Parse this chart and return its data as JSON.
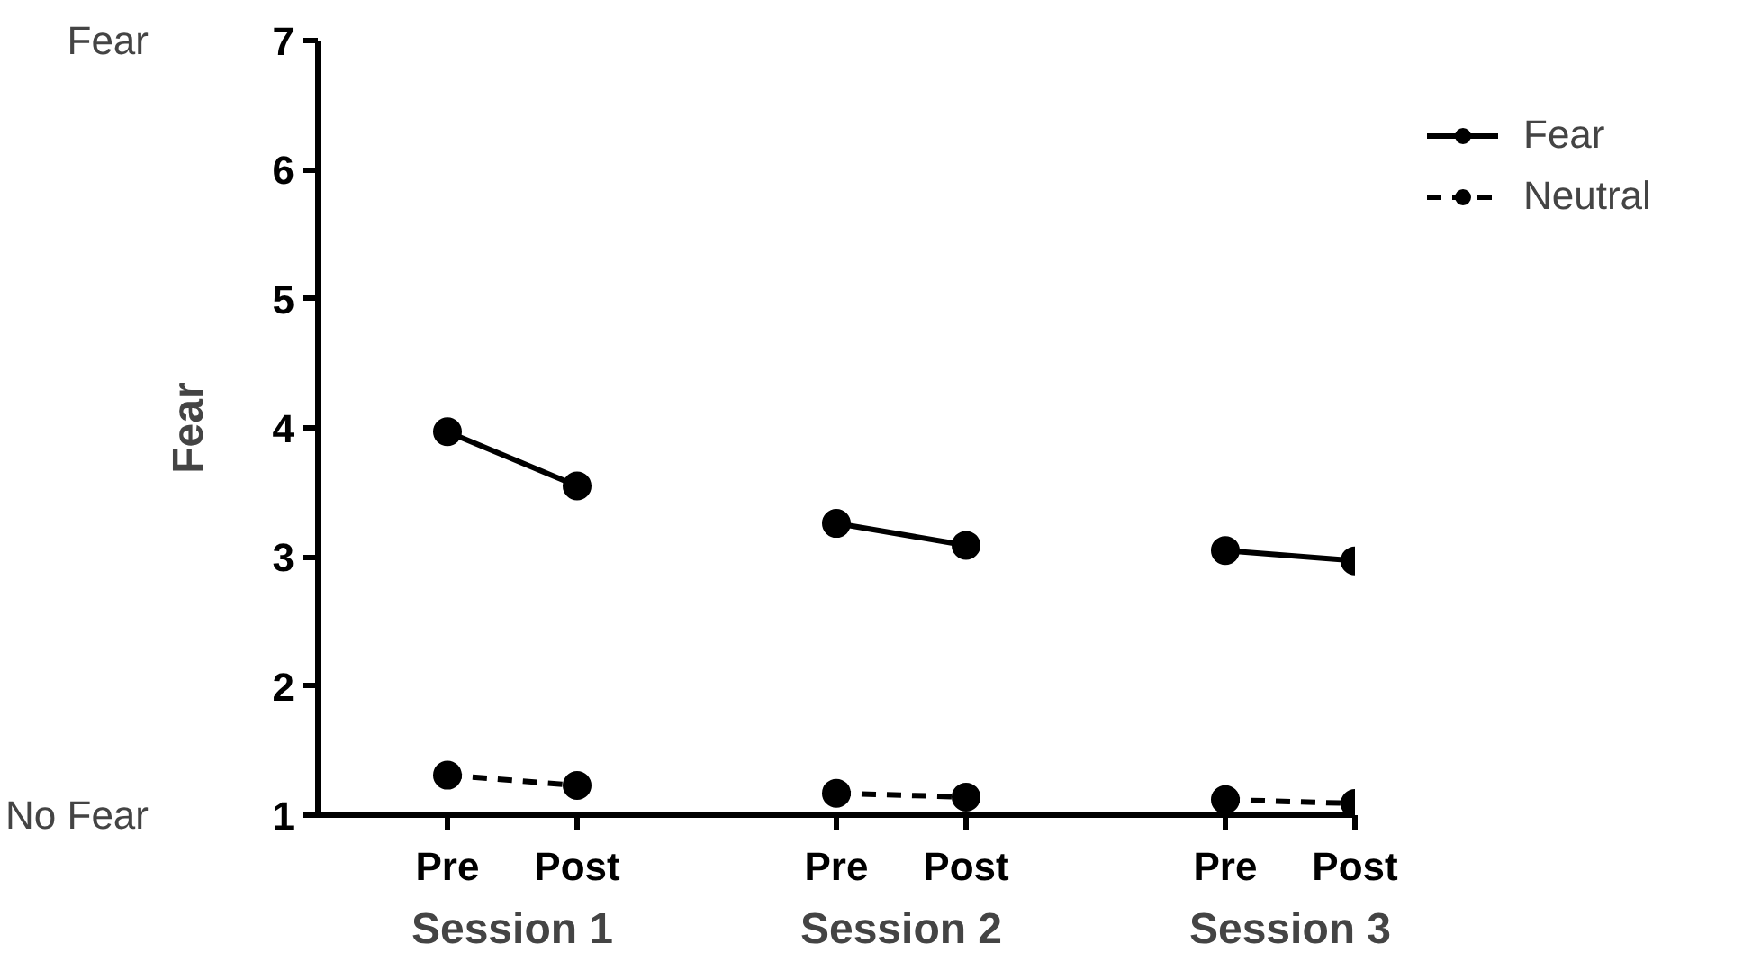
{
  "chart_data": {
    "type": "line",
    "ylabel": "Fear",
    "categories": [
      "Pre",
      "Post",
      null,
      "Pre",
      "Post",
      null,
      "Pre",
      "Post"
    ],
    "series": [
      {
        "name": "Fear",
        "color": "#000000",
        "line_style": "solid",
        "values": [
          3.97,
          3.55,
          null,
          3.26,
          3.09,
          null,
          3.05,
          2.97
        ]
      },
      {
        "name": "Neutral",
        "color": "#000000",
        "line_style": "dashed",
        "values": [
          1.31,
          1.23,
          null,
          1.17,
          1.14,
          null,
          1.12,
          1.09
        ]
      }
    ],
    "ylim": [
      1,
      7
    ],
    "yticks": [
      1,
      2,
      3,
      4,
      5,
      6,
      7
    ],
    "marker": "circle",
    "grid": false,
    "legend": "top right",
    "annotations": [
      "Session 1",
      "Session 2",
      "Session 3",
      "Fear",
      "No Fear"
    ]
  }
}
